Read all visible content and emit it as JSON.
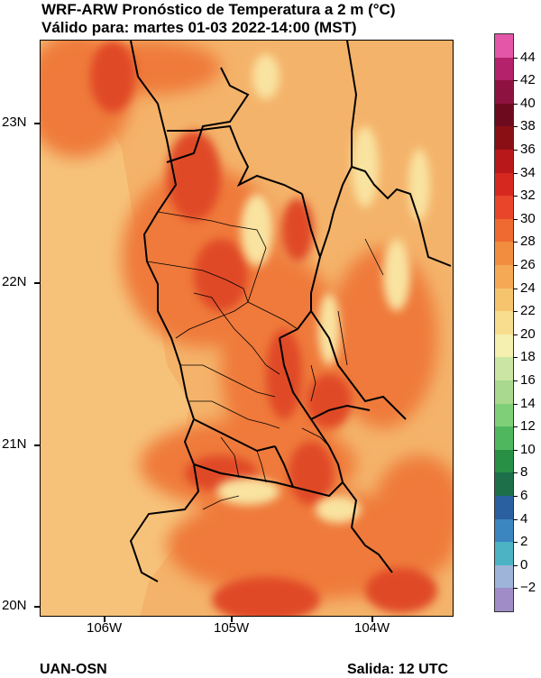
{
  "title": {
    "line1": "WRF-ARW Pronóstico de Temperatura a 2 m (°C)",
    "line2": "Válido para: martes 01-03 2022-14:00 (MST)"
  },
  "axes": {
    "lat_labels": [
      "23N",
      "22N",
      "21N",
      "20N"
    ],
    "lon_labels": [
      "106W",
      "105W",
      "104W"
    ]
  },
  "colorbar": {
    "labels": [
      "44",
      "42",
      "40",
      "38",
      "36",
      "34",
      "32",
      "30",
      "28",
      "26",
      "24",
      "22",
      "20",
      "18",
      "16",
      "14",
      "12",
      "10",
      "8",
      "6",
      "4",
      "2",
      "0",
      "−2"
    ],
    "colors": [
      "#e356a8",
      "#b3226b",
      "#8e1240",
      "#6e0a1e",
      "#8a0f15",
      "#b81819",
      "#d6281f",
      "#e8452a",
      "#ef6a30",
      "#f28c3f",
      "#f5a955",
      "#f7c46e",
      "#f9dd8f",
      "#f5efb0",
      "#cbe6a4",
      "#a8d98f",
      "#7fcf79",
      "#4fb85f",
      "#279045",
      "#1d6f4a",
      "#2a5fa0",
      "#3b86c0",
      "#4bb3c4",
      "#9fb4d9",
      "#a08cc6"
    ]
  },
  "map": {
    "base_color": "#f4b36a",
    "ocean_color": "#f6c27a",
    "hot_color": "#e04a28",
    "warm_color": "#ef7a3a",
    "cool_color": "#f9e3a0",
    "border_color": "#000000"
  },
  "footer": {
    "left": "UAN-OSN",
    "right": "Salida: 12 UTC"
  }
}
